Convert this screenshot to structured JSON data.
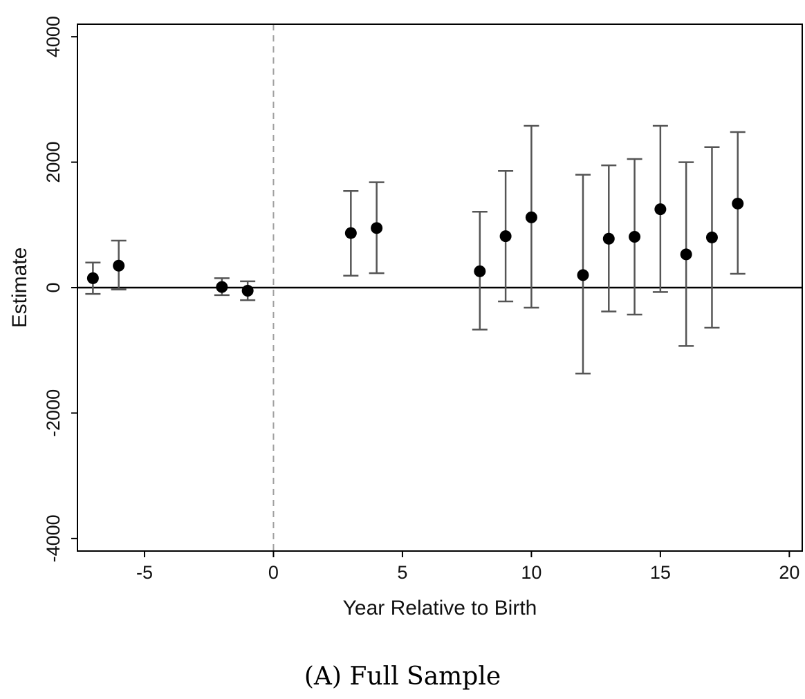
{
  "caption": {
    "label": "(A)",
    "text": "Full Sample"
  },
  "colors": {
    "point": "#000000",
    "errorbar": "#555555",
    "zero_line": "#000000",
    "reference_line": "#a0a0a0"
  },
  "chart_data": {
    "type": "scatter",
    "xlabel": "Year Relative to Birth",
    "ylabel": "Estimate",
    "xlim": [
      -7.6,
      20.5
    ],
    "ylim": [
      -4200,
      4200
    ],
    "xticks": [
      -5,
      0,
      5,
      10,
      15,
      20
    ],
    "xtick_labels": [
      "-5",
      "0",
      "5",
      "10",
      "15",
      "20"
    ],
    "yticks": [
      -4000,
      -2000,
      0,
      2000,
      4000
    ],
    "ytick_labels": [
      "-4000",
      "-2000",
      "0",
      "2000",
      "4000"
    ],
    "reference_lines": {
      "horizontal_y": 0,
      "vertical_dashed_x": 0
    },
    "grid": false,
    "legend": "none",
    "points": [
      {
        "x": -7,
        "y": 150,
        "lower": -100,
        "upper": 400
      },
      {
        "x": -6,
        "y": 350,
        "lower": -30,
        "upper": 750
      },
      {
        "x": -2,
        "y": 10,
        "lower": -120,
        "upper": 150
      },
      {
        "x": -1,
        "y": -50,
        "lower": -200,
        "upper": 100
      },
      {
        "x": 3,
        "y": 870,
        "lower": 190,
        "upper": 1540
      },
      {
        "x": 4,
        "y": 950,
        "lower": 230,
        "upper": 1680
      },
      {
        "x": 8,
        "y": 260,
        "lower": -670,
        "upper": 1210
      },
      {
        "x": 9,
        "y": 820,
        "lower": -220,
        "upper": 1860
      },
      {
        "x": 10,
        "y": 1120,
        "lower": -320,
        "upper": 2580
      },
      {
        "x": 12,
        "y": 200,
        "lower": -1370,
        "upper": 1800
      },
      {
        "x": 13,
        "y": 780,
        "lower": -380,
        "upper": 1950
      },
      {
        "x": 14,
        "y": 810,
        "lower": -430,
        "upper": 2050
      },
      {
        "x": 15,
        "y": 1250,
        "lower": -70,
        "upper": 2580
      },
      {
        "x": 16,
        "y": 530,
        "lower": -930,
        "upper": 2000
      },
      {
        "x": 17,
        "y": 800,
        "lower": -640,
        "upper": 2240
      },
      {
        "x": 18,
        "y": 1340,
        "lower": 220,
        "upper": 2480
      }
    ]
  }
}
